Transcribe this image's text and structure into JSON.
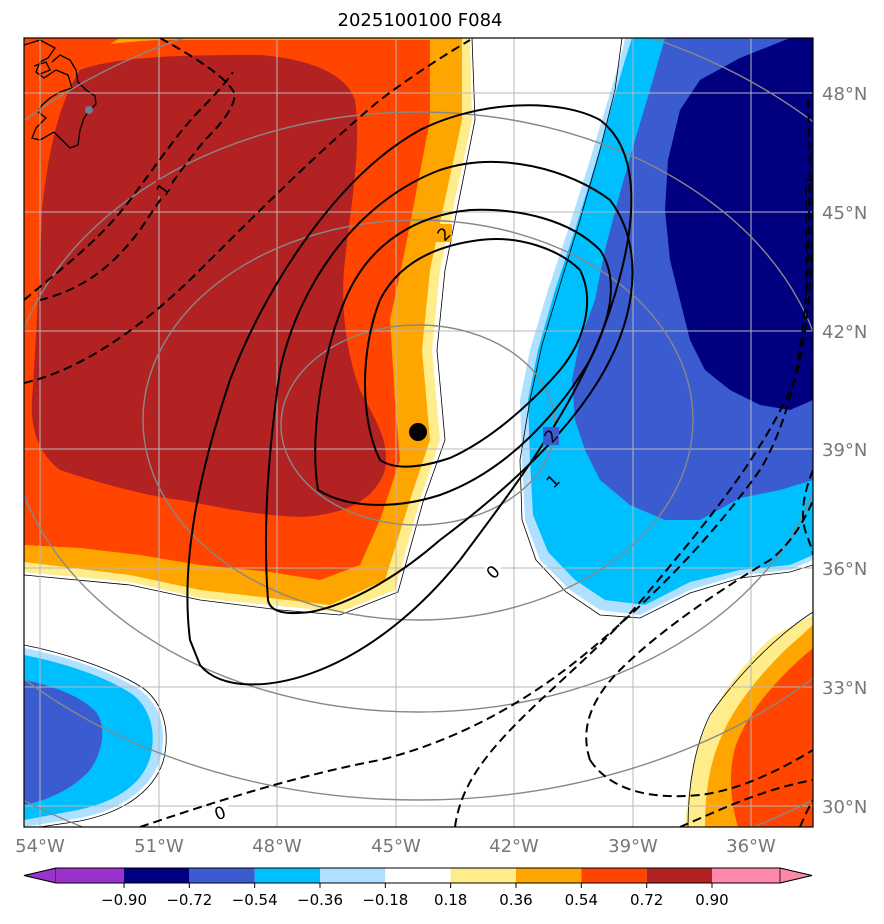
{
  "title": "2025100100 F084",
  "longitude_labels": [
    "54°W",
    "51°W",
    "48°W",
    "45°W",
    "42°W",
    "39°W",
    "36°W"
  ],
  "latitude_labels": [
    "48°N",
    "45°N",
    "42°N",
    "39°N",
    "36°N",
    "33°N",
    "30°N"
  ],
  "colorbar": {
    "tick_labels": [
      "−0.90",
      "−0.72",
      "−0.54",
      "−0.36",
      "−0.18",
      "0.18",
      "0.36",
      "0.54",
      "0.72",
      "0.90"
    ],
    "colors": [
      "#9933cc",
      "#000080",
      "#3b5bd1",
      "#00bfff",
      "#b0e0ff",
      "#ffffff",
      "#ffec8b",
      "#ffa500",
      "#ff4500",
      "#b22222",
      "#ff88aa"
    ]
  },
  "contour_labels": [
    "1",
    "2",
    "2",
    "1",
    "0",
    "0"
  ],
  "fill_colors": {
    "darkred": "#b22222",
    "orangered": "#ff4500",
    "orange": "#ffa500",
    "yellow": "#ffec8b",
    "lightblue": "#b0e0ff",
    "skyblue": "#00bfff",
    "royalblue": "#3b5bd1",
    "navy": "#000080"
  },
  "center_marker": {
    "lon": "44.4°W",
    "lat": "39.5°N"
  }
}
